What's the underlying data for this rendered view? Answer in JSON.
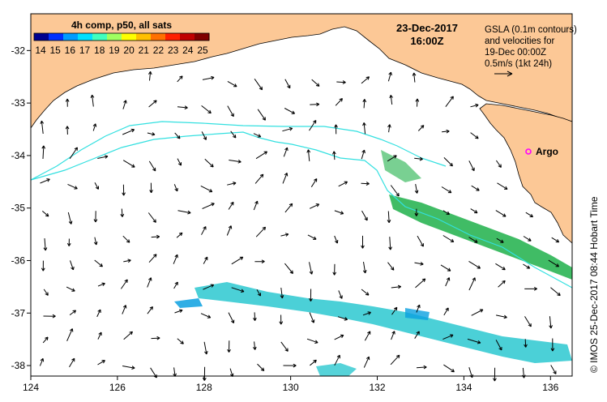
{
  "map": {
    "colorbar_title": "4h comp, p50, all sats",
    "colorbar_ticks": [
      "14",
      "15",
      "16",
      "17",
      "18",
      "19",
      "20",
      "21",
      "22",
      "23",
      "24",
      "25"
    ],
    "colorbar_colors": [
      "#00008f",
      "#0030ff",
      "#009cff",
      "#00e0ff",
      "#40ffbf",
      "#a0ff60",
      "#ffff00",
      "#ffc000",
      "#ff7000",
      "#ff2000",
      "#c00000",
      "#800000"
    ],
    "date": "23-Dec-2017",
    "time": "16:00Z",
    "legend_lines": [
      "GSLA (0.1m contours)",
      "and velocities for",
      "19-Dec 00:00Z",
      "0.5m/s (1kt 24h)"
    ],
    "float_label": "Argo",
    "credit": "©  IMOS 25-Dec-2017 08:44 Hobart Time",
    "x_ticks": [
      {
        "value": 124,
        "label": "124"
      },
      {
        "value": 126,
        "label": "126"
      },
      {
        "value": 128,
        "label": "128"
      },
      {
        "value": 130,
        "label": "130"
      },
      {
        "value": 132,
        "label": "132"
      },
      {
        "value": 134,
        "label": "134"
      },
      {
        "value": 136,
        "label": "136"
      }
    ],
    "y_ticks": [
      {
        "value": -32,
        "label": "-32"
      },
      {
        "value": -33,
        "label": "-33"
      },
      {
        "value": -34,
        "label": "-34"
      },
      {
        "value": -35,
        "label": "-35"
      },
      {
        "value": -36,
        "label": "-36"
      },
      {
        "value": -37,
        "label": "-37"
      },
      {
        "value": -38,
        "label": "-38"
      }
    ],
    "lon_range": [
      124,
      136.5
    ],
    "lat_range": [
      -38.2,
      -31.3
    ],
    "colors": {
      "land": "#fcc896",
      "contour": "#33e0e0",
      "argo": "#ff00ff",
      "sst_green": "#1fb04a",
      "sst_cyan": "#2cc8d0",
      "sst_blue": "#0aa0e0"
    }
  }
}
